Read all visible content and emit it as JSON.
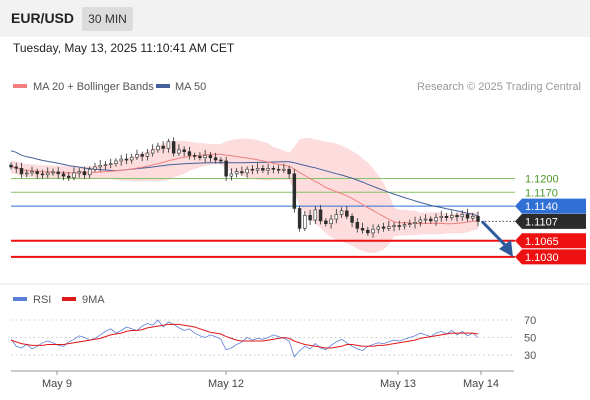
{
  "header": {
    "symbol": "EUR/USD",
    "timeframe": "30 MIN",
    "datetime": "Tuesday, May 13, 2025 11:10:41 AM CET"
  },
  "legend": {
    "ma20_bb": "MA 20 + Bollinger Bands",
    "ma50": "MA 50",
    "credit": "Research © 2025 Trading Central"
  },
  "rsi_legend": {
    "rsi": "RSI",
    "ma9": "9MA"
  },
  "colors": {
    "bollinger_fill": "#fbd6d6",
    "ma20": "#f08080",
    "ma50": "#44609a",
    "candle": "#2d2d2d",
    "resistance": "#88c266",
    "pivot": "#2f6fd6",
    "support": "#ee1111",
    "current": "#2b2b2b",
    "rsi": "#5b7fd9",
    "rsi_ma": "#e01818",
    "arrow": "#2f5a9c"
  },
  "chart_data": [
    {
      "type": "candlestick",
      "title": "",
      "y_range": [
        1.098,
        1.137
      ],
      "x_labels": [
        "May 9",
        "May 12",
        "May 13",
        "May 14"
      ],
      "levels": [
        {
          "value": 1.12,
          "label": "1.1200",
          "kind": "resistance"
        },
        {
          "value": 1.117,
          "label": "1.1170",
          "kind": "resistance"
        },
        {
          "value": 1.114,
          "label": "1.1140",
          "kind": "pivot"
        },
        {
          "value": 1.1107,
          "label": "1.1107",
          "kind": "current"
        },
        {
          "value": 1.1065,
          "label": "1.1065",
          "kind": "support"
        },
        {
          "value": 1.103,
          "label": "1.1030",
          "kind": "support"
        }
      ],
      "forecast": {
        "from": 1.1107,
        "to": 1.103,
        "direction": "down"
      },
      "close_series": [
        1.1225,
        1.1222,
        1.121,
        1.1212,
        1.1215,
        1.121,
        1.1208,
        1.1212,
        1.1214,
        1.121,
        1.1205,
        1.1202,
        1.1212,
        1.1215,
        1.1208,
        1.122,
        1.1225,
        1.1228,
        1.123,
        1.1232,
        1.1238,
        1.1242,
        1.124,
        1.1246,
        1.1252,
        1.1248,
        1.1255,
        1.1262,
        1.127,
        1.1265,
        1.128,
        1.1255,
        1.1262,
        1.1258,
        1.125,
        1.1248,
        1.1245,
        1.125,
        1.1245,
        1.124,
        1.1238,
        1.1205,
        1.121,
        1.1215,
        1.1212,
        1.122,
        1.1218,
        1.1222,
        1.1218,
        1.1222,
        1.122,
        1.1218,
        1.122,
        1.121,
        1.1135,
        1.1092,
        1.112,
        1.111,
        1.1132,
        1.1108,
        1.1102,
        1.1112,
        1.1122,
        1.113,
        1.1118,
        1.1105,
        1.1092,
        1.1088,
        1.1082,
        1.109,
        1.1095,
        1.1092,
        1.1096,
        1.1098,
        1.1097,
        1.11,
        1.1102,
        1.1105,
        1.111,
        1.1112,
        1.1108,
        1.1115,
        1.1118,
        1.1115,
        1.112,
        1.1117,
        1.1122,
        1.1114,
        1.1118,
        1.1107
      ]
    },
    {
      "type": "line",
      "title": "RSI",
      "y_range": [
        20,
        80
      ],
      "y_ticks": [
        "70",
        "50",
        "30"
      ],
      "series": [
        {
          "name": "RSI",
          "values": [
            48,
            40,
            38,
            42,
            37,
            40,
            44,
            46,
            44,
            41,
            40,
            45,
            48,
            52,
            50,
            47,
            49,
            53,
            57,
            60,
            55,
            58,
            62,
            60,
            58,
            63,
            66,
            64,
            70,
            62,
            68,
            65,
            61,
            58,
            60,
            55,
            52,
            50,
            53,
            51,
            48,
            36,
            38,
            42,
            45,
            50,
            47,
            49,
            48,
            50,
            53,
            51,
            49,
            46,
            28,
            35,
            40,
            37,
            43,
            38,
            36,
            41,
            45,
            48,
            44,
            40,
            37,
            35,
            40,
            42,
            44,
            43,
            45,
            47,
            46,
            48,
            50,
            52,
            55,
            53,
            51,
            55,
            57,
            54,
            58,
            53,
            57,
            52,
            55,
            50
          ]
        },
        {
          "name": "9MA",
          "values": [
            47,
            45,
            43,
            42,
            41,
            41,
            41,
            42,
            42,
            42,
            42,
            43,
            44,
            45,
            46,
            47,
            48,
            49,
            51,
            53,
            54,
            55,
            57,
            58,
            58,
            59,
            61,
            62,
            63,
            64,
            65,
            65,
            65,
            64,
            63,
            62,
            60,
            58,
            56,
            55,
            54,
            51,
            49,
            47,
            46,
            46,
            46,
            46,
            46,
            47,
            48,
            49,
            50,
            49,
            46,
            44,
            42,
            41,
            40,
            39,
            38,
            38,
            39,
            40,
            42,
            42,
            41,
            40,
            40,
            40,
            41,
            41,
            42,
            43,
            44,
            45,
            46,
            47,
            49,
            50,
            51,
            52,
            53,
            54,
            55,
            55,
            55,
            55,
            55,
            54
          ]
        }
      ]
    }
  ]
}
